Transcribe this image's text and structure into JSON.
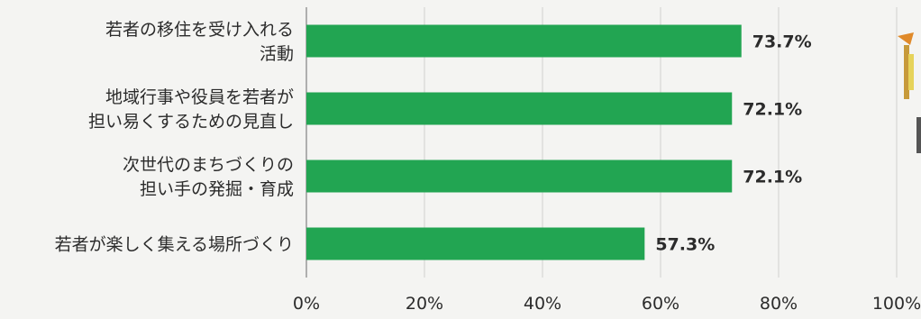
{
  "chart_data": {
    "type": "bar",
    "orientation": "horizontal",
    "categories": [
      [
        "若者の移住を受け入れる",
        "活動"
      ],
      [
        "地域行事や役員を若者が",
        "担い易くするための見直し"
      ],
      [
        "次世代のまちづくりの",
        "担い手の発掘・育成"
      ],
      [
        "若者が楽しく集える場所づくり"
      ]
    ],
    "values": [
      73.7,
      72.1,
      72.1,
      57.3
    ],
    "value_labels": [
      "73.7%",
      "72.1%",
      "72.1%",
      "57.3%"
    ],
    "x_ticks": [
      "0%",
      "20%",
      "40%",
      "60%",
      "80%",
      "100%"
    ],
    "xlim": [
      0,
      100
    ],
    "grid": true,
    "bar_color": "#22a552",
    "title": "",
    "xlabel": "",
    "ylabel": ""
  }
}
